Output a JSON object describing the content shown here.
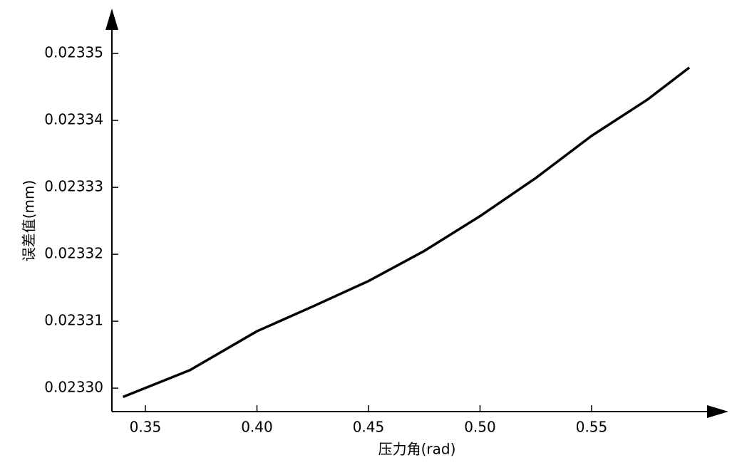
{
  "chart_data": {
    "type": "line",
    "xlabel": "压力角(rad)",
    "ylabel": "误差值(mm)",
    "x": [
      0.34,
      0.37,
      0.4,
      0.425,
      0.45,
      0.475,
      0.5,
      0.525,
      0.55,
      0.575,
      0.5938
    ],
    "series": [
      {
        "color": "#000000",
        "values": [
          0.0232987,
          0.0233027,
          0.0233085,
          0.0233122,
          0.023316,
          0.0233205,
          0.0233257,
          0.0233314,
          0.0233377,
          0.0233431,
          0.0233479
        ]
      }
    ],
    "xlim": [
      0.335,
      0.6
    ],
    "ylim": [
      0.0232965,
      0.0233525
    ],
    "xticks": [
      0.35,
      {
        "value": 0.4,
        "label": "0.40"
      },
      0.45,
      {
        "value": 0.5,
        "label": "0.50"
      },
      0.55
    ],
    "yticks": [
      {
        "value": 0.0233,
        "label": "0.02330"
      },
      0.02331,
      0.02332,
      0.02333,
      0.02334,
      0.02335
    ]
  }
}
